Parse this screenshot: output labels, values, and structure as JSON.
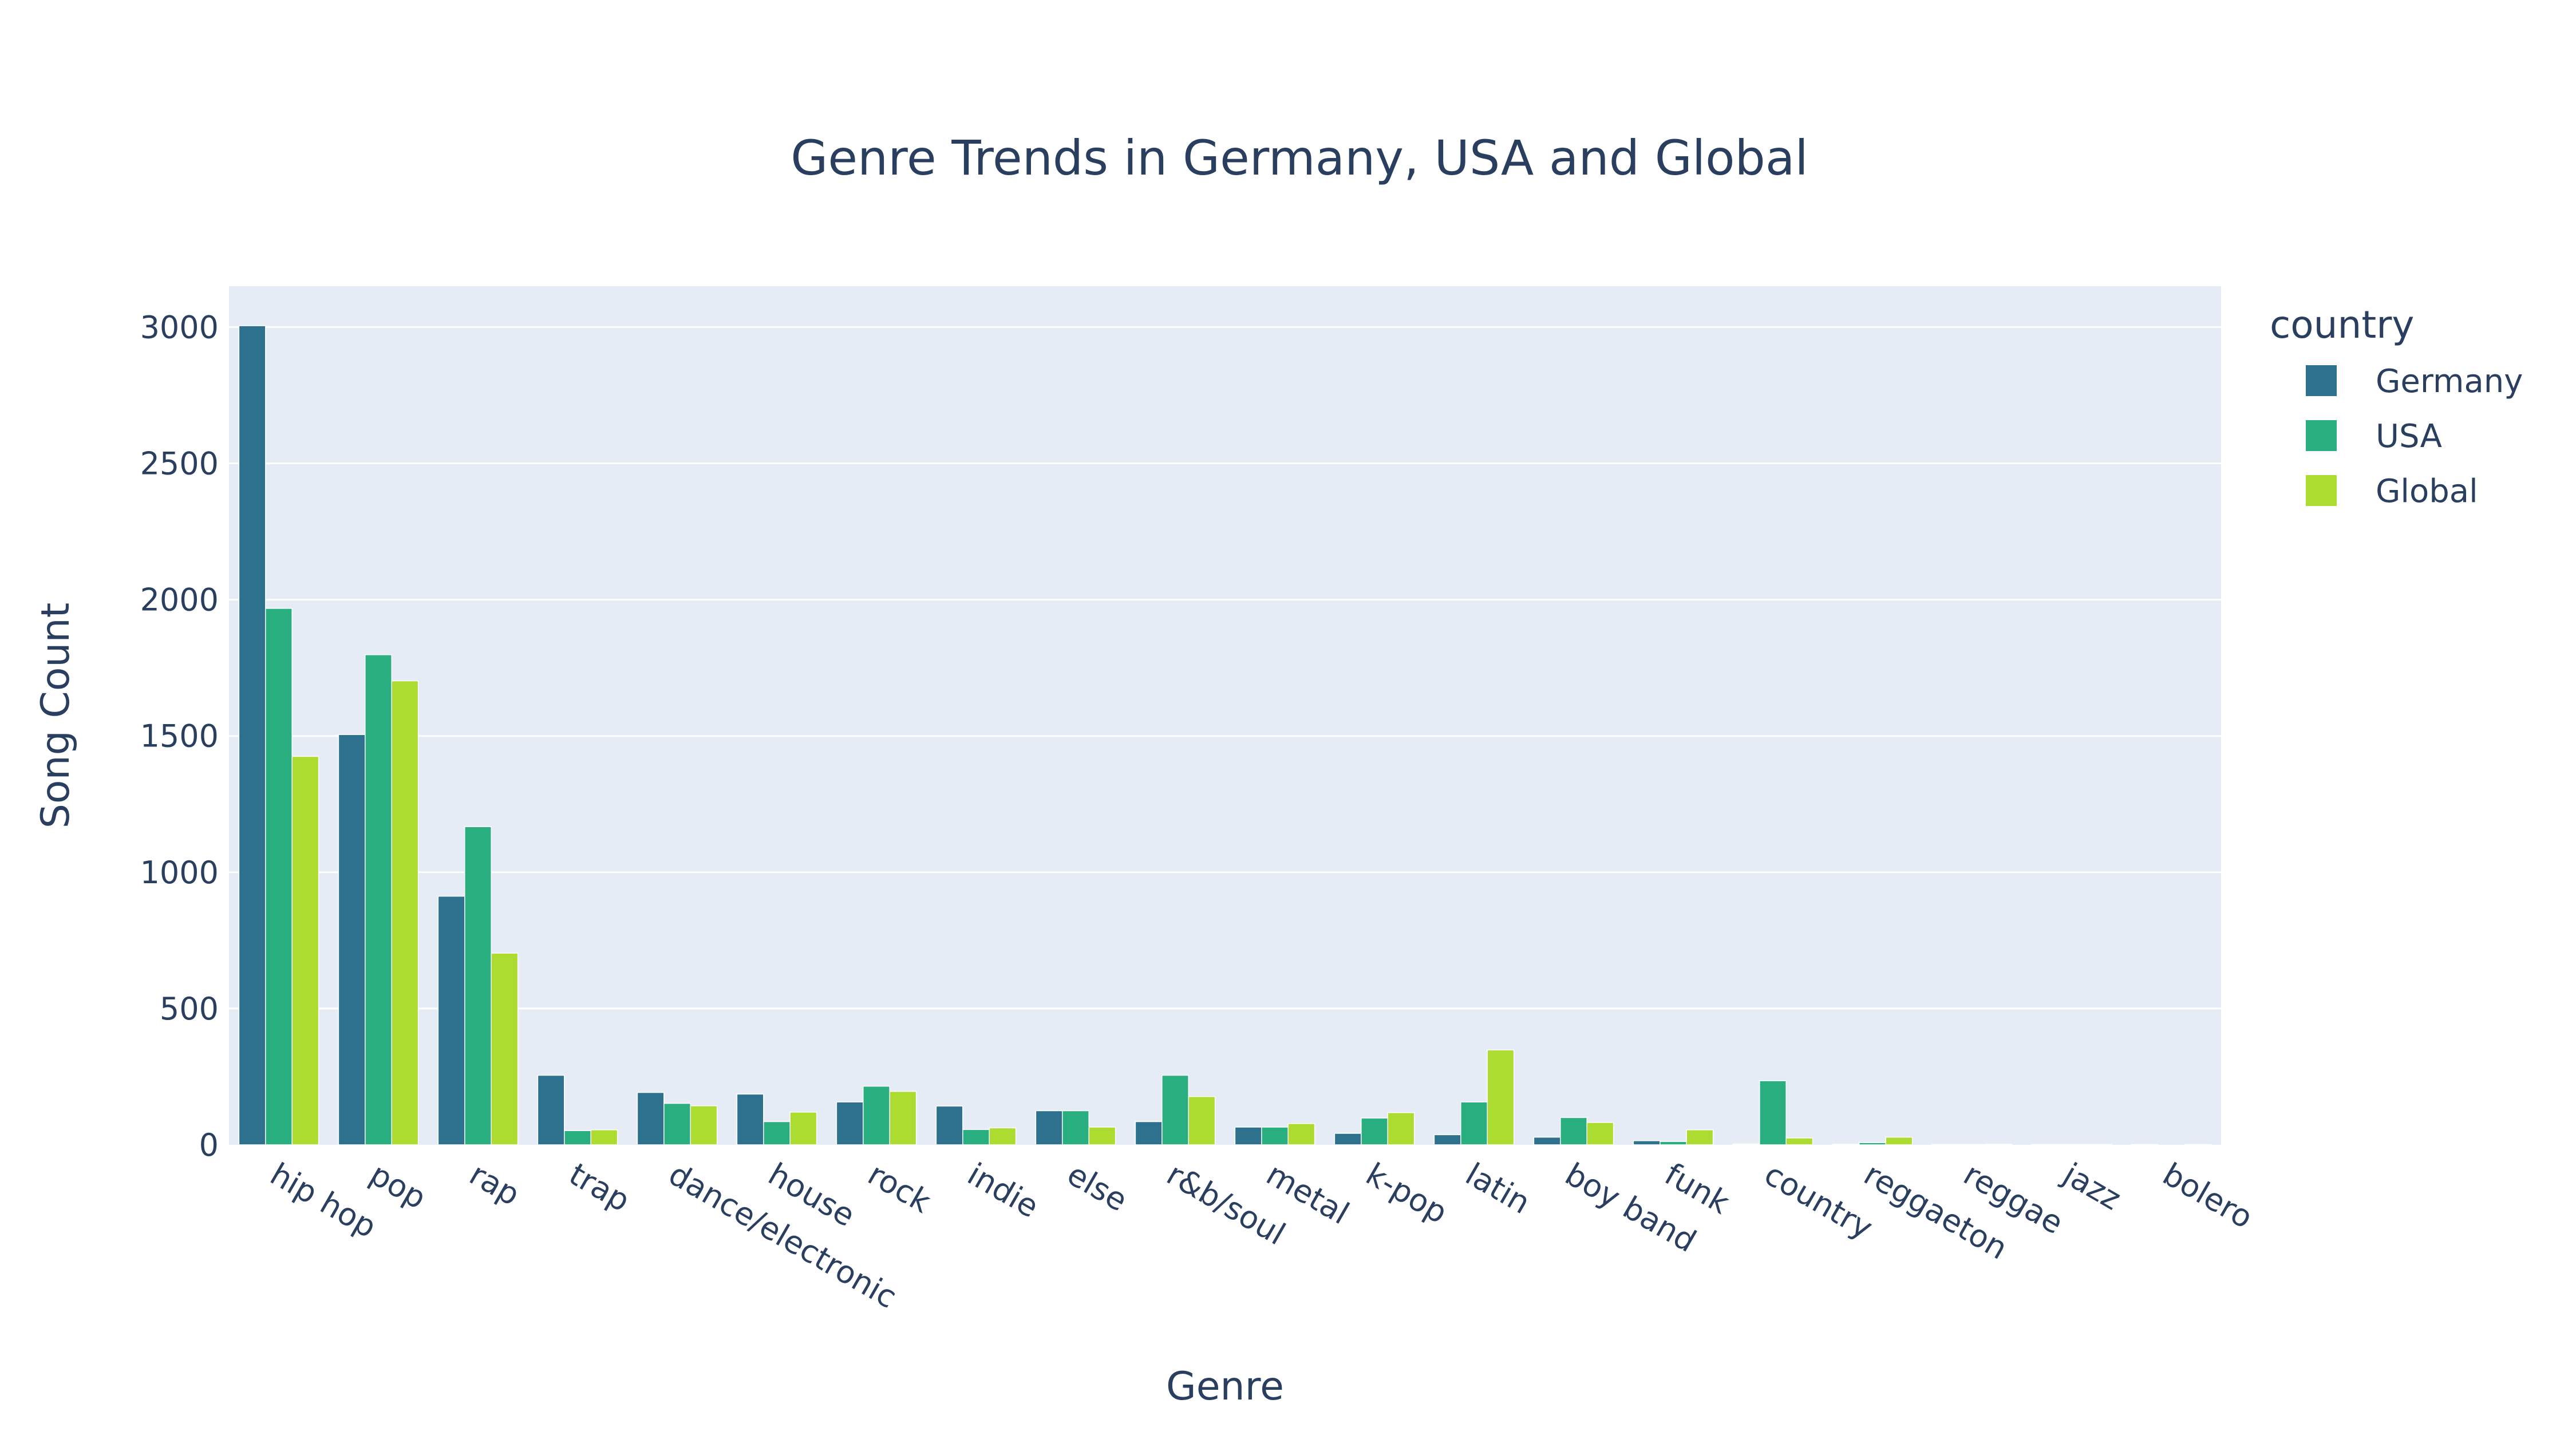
{
  "chart_data": {
    "type": "bar",
    "title": "Genre Trends in Germany, USA and Global",
    "xlabel": "Genre",
    "ylabel": "Song Count",
    "ylim": [
      0,
      3150
    ],
    "yticks": [
      0,
      500,
      1000,
      1500,
      2000,
      2500,
      3000
    ],
    "grid": true,
    "barmode": "group",
    "legend_title": "country",
    "legend_position": "top-right, outside plot",
    "categories": [
      "hip hop",
      "pop",
      "rap",
      "trap",
      "dance/electronic",
      "house",
      "rock",
      "indie",
      "else",
      "r&b/soul",
      "metal",
      "k-pop",
      "latin",
      "boy band",
      "funk",
      "country",
      "reggaeton",
      "reggae",
      "jazz",
      "bolero"
    ],
    "series": [
      {
        "name": "Germany",
        "color": "#2d718e",
        "values": [
          3005,
          1505,
          912,
          255,
          192,
          186,
          157,
          142,
          125,
          85,
          65,
          42,
          37,
          28,
          15,
          3,
          2,
          1,
          1,
          1
        ]
      },
      {
        "name": "USA",
        "color": "#29af7f",
        "values": [
          1968,
          1798,
          1167,
          52,
          152,
          85,
          215,
          56,
          125,
          255,
          65,
          98,
          157,
          100,
          12,
          235,
          8,
          1,
          1,
          0
        ]
      },
      {
        "name": "Global",
        "color": "#addc30",
        "values": [
          1425,
          1702,
          703,
          55,
          143,
          120,
          196,
          62,
          65,
          177,
          78,
          118,
          348,
          82,
          55,
          25,
          28,
          2,
          1,
          1
        ]
      }
    ]
  }
}
